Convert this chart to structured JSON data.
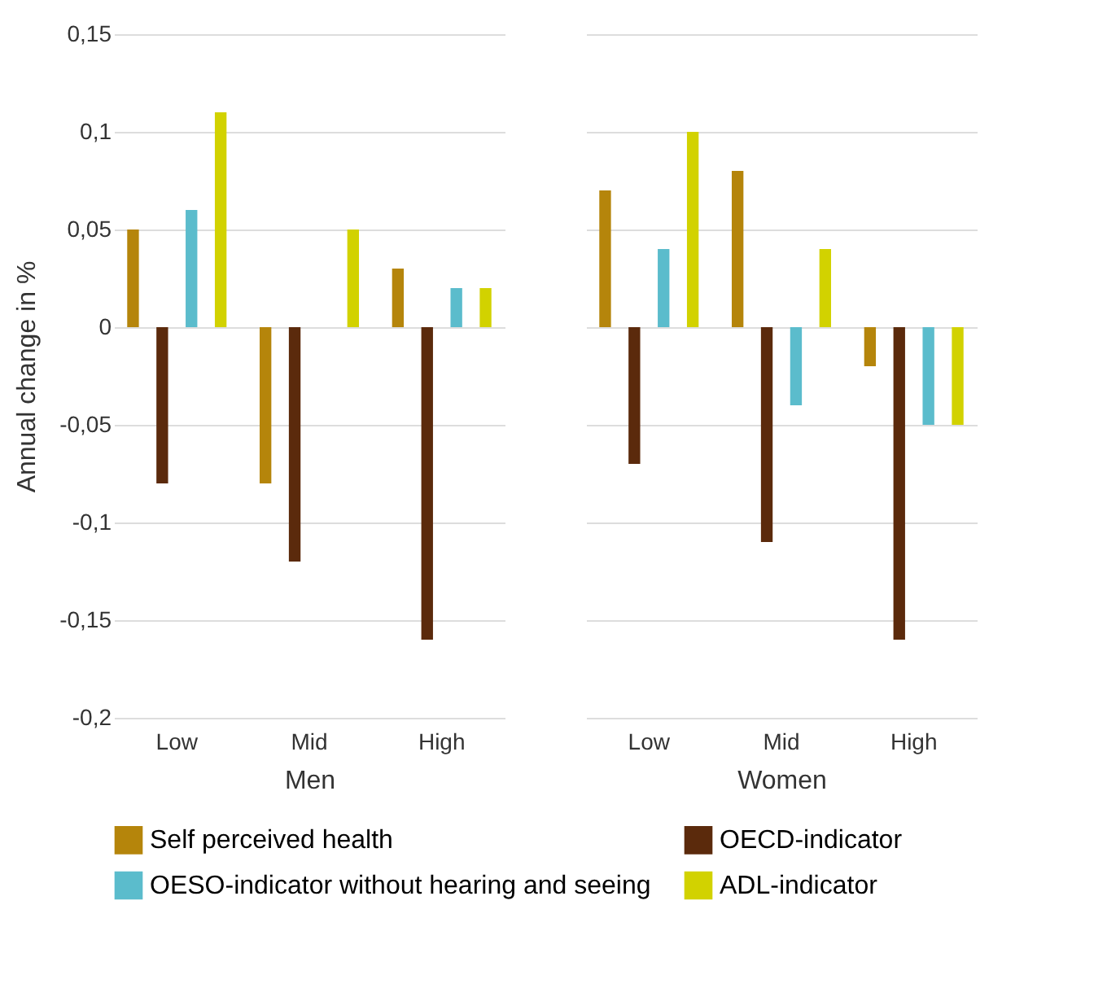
{
  "chart_data": [
    {
      "type": "bar",
      "xlabel": "Men",
      "ylabel": "Annual change in %",
      "categories": [
        "Low",
        "Mid",
        "High"
      ],
      "series": [
        {
          "name": "Self perceived health",
          "color": "#b5850b",
          "values": [
            0.05,
            -0.08,
            0.03
          ]
        },
        {
          "name": "OECD-indicator",
          "color": "#5b2a0c",
          "values": [
            -0.08,
            -0.12,
            -0.16
          ]
        },
        {
          "name": "OESO-indicator without hearing and seeing",
          "color": "#5bbccc",
          "values": [
            0.06,
            0,
            0.02
          ]
        },
        {
          "name": "ADL-indicator",
          "color": "#d2d200",
          "values": [
            0.11,
            0.05,
            0.02
          ]
        }
      ],
      "ylim": [
        -0.2,
        0.15
      ],
      "yticks": [
        {
          "value": -0.2,
          "label": "-0,2"
        },
        {
          "value": -0.15,
          "label": "-0,15"
        },
        {
          "value": -0.1,
          "label": "-0,1"
        },
        {
          "value": -0.05,
          "label": "-0,05"
        },
        0,
        {
          "value": 0.05,
          "label": "0,05"
        },
        {
          "value": 0.1,
          "label": "0,1"
        },
        {
          "value": 0.15,
          "label": "0,15"
        }
      ],
      "grid": "y",
      "legend": "bottom"
    },
    {
      "type": "bar",
      "xlabel": "Women",
      "categories": [
        "Low",
        "Mid",
        "High"
      ],
      "series": [
        {
          "name": "Self perceived health",
          "color": "#b5850b",
          "values": [
            0.07,
            0.08,
            -0.02
          ]
        },
        {
          "name": "OECD-indicator",
          "color": "#5b2a0c",
          "values": [
            -0.07,
            -0.11,
            -0.16
          ]
        },
        {
          "name": "OESO-indicator without hearing and seeing",
          "color": "#5bbccc",
          "values": [
            0.04,
            -0.04,
            -0.05
          ]
        },
        {
          "name": "ADL-indicator",
          "color": "#d2d200",
          "values": [
            0.1,
            0.04,
            -0.05
          ]
        }
      ],
      "ylim": [
        -0.2,
        0.15
      ],
      "yticks": [
        -0.2,
        -0.15,
        -0.1,
        -0.05,
        0,
        0.05,
        0.1,
        0.15
      ],
      "grid": "y",
      "tick_labels": "x",
      "legend": "bottom"
    }
  ]
}
